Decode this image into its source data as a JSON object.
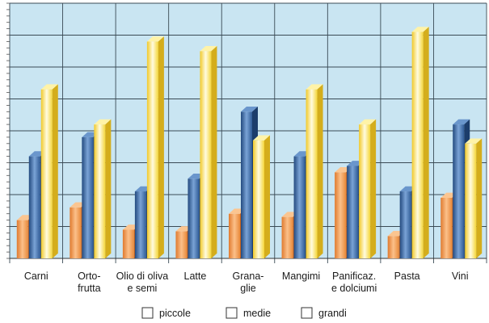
{
  "chart_data": {
    "type": "bar",
    "categories": [
      [
        "Carni"
      ],
      [
        "Orto-",
        "frutta"
      ],
      [
        "Olio di oliva",
        "e semi"
      ],
      [
        "Latte"
      ],
      [
        "Grana-",
        "glie"
      ],
      [
        "Mangimi"
      ],
      [
        "Panificaz.",
        "e dolciumi"
      ],
      [
        "Pasta"
      ],
      [
        "Vini"
      ]
    ],
    "series": [
      {
        "name": "piccole",
        "values": [
          12,
          16,
          9,
          8.5,
          14,
          13,
          27,
          7,
          19
        ]
      },
      {
        "name": "medie",
        "values": [
          32,
          38,
          21,
          25,
          46,
          32,
          29,
          21,
          42
        ]
      },
      {
        "name": "grandi",
        "values": [
          53,
          42,
          68,
          65,
          37,
          53,
          42,
          71,
          36
        ]
      }
    ],
    "ylim": [
      0,
      80
    ],
    "grid": true,
    "legend_position": "bottom",
    "colors": {
      "plot_background": "#c9e5f2",
      "grid": "#3a4a55",
      "piccole": "#f5a055",
      "medie": "#3d6fae",
      "grandi": "#f7e04a"
    }
  }
}
